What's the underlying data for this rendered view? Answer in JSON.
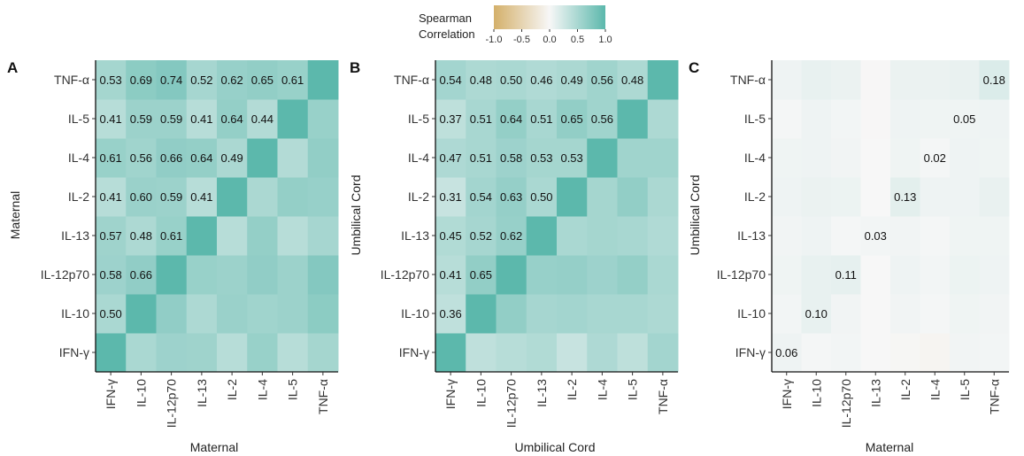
{
  "legend": {
    "title_line1": "Spearman",
    "title_line2": "Correlation",
    "ticks": [
      "-1.0",
      "-0.5",
      "0.0",
      "0.5",
      "1.0"
    ],
    "tick_values": [
      -1.0,
      -0.5,
      0.0,
      0.5,
      1.0
    ],
    "colors": {
      "low": "#d4b06a",
      "mid": "#f7f7f7",
      "high": "#5cb8ac"
    }
  },
  "chart_data": [
    {
      "type": "heatmap",
      "panel_letter": "A",
      "x_categories": [
        "IFN-γ",
        "IL-10",
        "IL-12p70",
        "IL-13",
        "IL-2",
        "IL-4",
        "IL-5",
        "TNF-α"
      ],
      "y_categories": [
        "IFN-γ",
        "IL-10",
        "IL-12p70",
        "IL-13",
        "IL-2",
        "IL-4",
        "IL-5",
        "TNF-α"
      ],
      "xlabel": "Maternal",
      "ylabel": "Maternal",
      "fill_scale": [
        -1,
        1
      ],
      "labels": [
        [
          null,
          null,
          null,
          null,
          null,
          null,
          null,
          null
        ],
        [
          "0.50",
          null,
          null,
          null,
          null,
          null,
          null,
          null
        ],
        [
          "0.58",
          "0.66",
          null,
          null,
          null,
          null,
          null,
          null
        ],
        [
          "0.57",
          "0.48",
          "0.61",
          null,
          null,
          null,
          null,
          null
        ],
        [
          "0.41",
          "0.60",
          "0.59",
          "0.41",
          null,
          null,
          null,
          null
        ],
        [
          "0.61",
          "0.56",
          "0.66",
          "0.64",
          "0.49",
          null,
          null,
          null
        ],
        [
          "0.41",
          "0.59",
          "0.59",
          "0.41",
          "0.64",
          "0.44",
          null,
          null
        ],
        [
          "0.53",
          "0.69",
          "0.74",
          "0.52",
          "0.62",
          "0.65",
          "0.61",
          null
        ]
      ],
      "values": [
        [
          1.0,
          0.5,
          0.58,
          0.57,
          0.41,
          0.61,
          0.41,
          0.53
        ],
        [
          0.5,
          1.0,
          0.66,
          0.48,
          0.6,
          0.56,
          0.59,
          0.69
        ],
        [
          0.58,
          0.66,
          1.0,
          0.61,
          0.59,
          0.66,
          0.59,
          0.74
        ],
        [
          0.57,
          0.48,
          0.61,
          1.0,
          0.41,
          0.64,
          0.41,
          0.52
        ],
        [
          0.41,
          0.6,
          0.59,
          0.41,
          1.0,
          0.49,
          0.64,
          0.62
        ],
        [
          0.61,
          0.56,
          0.66,
          0.64,
          0.49,
          1.0,
          0.44,
          0.65
        ],
        [
          0.41,
          0.59,
          0.59,
          0.41,
          0.64,
          0.44,
          1.0,
          0.61
        ],
        [
          0.53,
          0.69,
          0.74,
          0.52,
          0.62,
          0.65,
          0.61,
          1.0
        ]
      ]
    },
    {
      "type": "heatmap",
      "panel_letter": "B",
      "x_categories": [
        "IFN-γ",
        "IL-10",
        "IL-12p70",
        "IL-13",
        "IL-2",
        "IL-4",
        "IL-5",
        "TNF-α"
      ],
      "y_categories": [
        "IFN-γ",
        "IL-10",
        "IL-12p70",
        "IL-13",
        "IL-2",
        "IL-4",
        "IL-5",
        "TNF-α"
      ],
      "xlabel": "Umbilical Cord",
      "ylabel": "Umbilical Cord",
      "fill_scale": [
        -1,
        1
      ],
      "labels": [
        [
          null,
          null,
          null,
          null,
          null,
          null,
          null,
          null
        ],
        [
          "0.36",
          null,
          null,
          null,
          null,
          null,
          null,
          null
        ],
        [
          "0.41",
          "0.65",
          null,
          null,
          null,
          null,
          null,
          null
        ],
        [
          "0.45",
          "0.52",
          "0.62",
          null,
          null,
          null,
          null,
          null
        ],
        [
          "0.31",
          "0.54",
          "0.63",
          "0.50",
          null,
          null,
          null,
          null
        ],
        [
          "0.47",
          "0.51",
          "0.58",
          "0.53",
          "0.53",
          null,
          null,
          null
        ],
        [
          "0.37",
          "0.51",
          "0.64",
          "0.51",
          "0.65",
          "0.56",
          null,
          null
        ],
        [
          "0.54",
          "0.48",
          "0.50",
          "0.46",
          "0.49",
          "0.56",
          "0.48",
          null
        ]
      ],
      "values": [
        [
          1.0,
          0.36,
          0.41,
          0.45,
          0.31,
          0.47,
          0.37,
          0.54
        ],
        [
          0.36,
          1.0,
          0.65,
          0.52,
          0.54,
          0.51,
          0.51,
          0.48
        ],
        [
          0.41,
          0.65,
          1.0,
          0.62,
          0.63,
          0.58,
          0.64,
          0.5
        ],
        [
          0.45,
          0.52,
          0.62,
          1.0,
          0.5,
          0.53,
          0.51,
          0.46
        ],
        [
          0.31,
          0.54,
          0.63,
          0.5,
          1.0,
          0.53,
          0.65,
          0.49
        ],
        [
          0.47,
          0.51,
          0.58,
          0.53,
          0.53,
          1.0,
          0.56,
          0.56
        ],
        [
          0.37,
          0.51,
          0.64,
          0.51,
          0.65,
          0.56,
          1.0,
          0.48
        ],
        [
          0.54,
          0.48,
          0.5,
          0.46,
          0.49,
          0.56,
          0.48,
          1.0
        ]
      ]
    },
    {
      "type": "heatmap",
      "panel_letter": "C",
      "x_categories": [
        "IFN-γ",
        "IL-10",
        "IL-12p70",
        "IL-13",
        "IL-2",
        "IL-4",
        "IL-5",
        "TNF-α"
      ],
      "y_categories": [
        "IFN-γ",
        "IL-10",
        "IL-12p70",
        "IL-13",
        "IL-2",
        "IL-4",
        "IL-5",
        "TNF-α"
      ],
      "xlabel": "Maternal",
      "ylabel": "Umbilical Cord",
      "fill_scale": [
        -1,
        1
      ],
      "labels": [
        [
          "0.06",
          null,
          null,
          null,
          null,
          null,
          null,
          null
        ],
        [
          null,
          "0.10",
          null,
          null,
          null,
          null,
          null,
          null
        ],
        [
          null,
          null,
          "0.11",
          null,
          null,
          null,
          null,
          null
        ],
        [
          null,
          null,
          null,
          "0.03",
          null,
          null,
          null,
          null
        ],
        [
          null,
          null,
          null,
          null,
          "0.13",
          null,
          null,
          null
        ],
        [
          null,
          null,
          null,
          null,
          null,
          "0.02",
          null,
          null
        ],
        [
          null,
          null,
          null,
          null,
          null,
          null,
          "0.05",
          null
        ],
        [
          null,
          null,
          null,
          null,
          null,
          null,
          null,
          "0.18"
        ]
      ],
      "values": [
        [
          0.06,
          0.02,
          0.03,
          0.0,
          -0.02,
          -0.04,
          0.04,
          0.03
        ],
        [
          0.03,
          0.1,
          0.04,
          0.0,
          0.04,
          0.02,
          0.05,
          0.04
        ],
        [
          0.05,
          0.1,
          0.11,
          0.0,
          0.06,
          0.03,
          0.07,
          0.06
        ],
        [
          0.04,
          0.06,
          0.02,
          0.03,
          0.04,
          0.02,
          0.05,
          0.05
        ],
        [
          0.06,
          0.08,
          0.07,
          0.0,
          0.13,
          0.06,
          0.06,
          0.09
        ],
        [
          0.05,
          0.06,
          0.04,
          0.0,
          0.05,
          0.02,
          0.06,
          0.05
        ],
        [
          0.02,
          0.06,
          0.03,
          -0.01,
          0.06,
          0.05,
          0.05,
          0.06
        ],
        [
          0.06,
          0.1,
          0.08,
          -0.01,
          0.08,
          0.08,
          0.09,
          0.18
        ]
      ]
    }
  ]
}
